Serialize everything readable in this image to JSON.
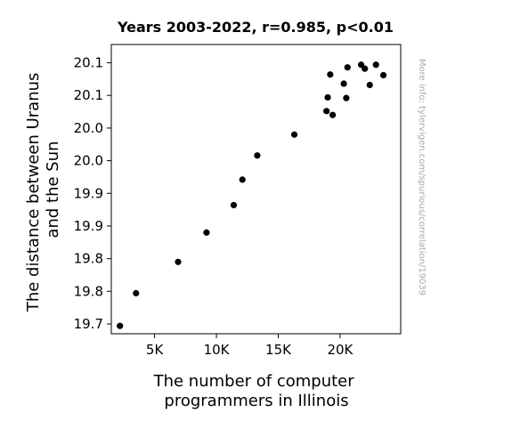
{
  "chart_data": {
    "type": "scatter",
    "title": "Years 2003-2022, r=0.985, p<0.01",
    "xlabel": [
      "The number of computer",
      "programmers in Illinois"
    ],
    "ylabel": [
      "The distance between Uranus",
      "and the Sun"
    ],
    "watermark": "More info: tylervigen.com/spurious/correlation/19039",
    "xlim": [
      1500,
      24900
    ],
    "ylim": [
      19.685,
      20.128
    ],
    "x_ticks": [
      {
        "value": 5000,
        "label": "5K"
      },
      {
        "value": 10000,
        "label": "10K"
      },
      {
        "value": 15000,
        "label": "15K"
      },
      {
        "value": 20000,
        "label": "20K"
      }
    ],
    "y_ticks": [
      {
        "value": 19.7,
        "label": "19.7"
      },
      {
        "value": 19.75,
        "label": "19.8"
      },
      {
        "value": 19.8,
        "label": "19.8"
      },
      {
        "value": 19.85,
        "label": "19.9"
      },
      {
        "value": 19.9,
        "label": "19.9"
      },
      {
        "value": 19.95,
        "label": "20.0"
      },
      {
        "value": 20.0,
        "label": "20.0"
      },
      {
        "value": 20.05,
        "label": "20.1"
      },
      {
        "value": 20.1,
        "label": "20.1"
      }
    ],
    "point_color": "#000000",
    "points": [
      {
        "x": 2200,
        "y": 19.697
      },
      {
        "x": 3500,
        "y": 19.747
      },
      {
        "x": 6900,
        "y": 19.795
      },
      {
        "x": 9200,
        "y": 19.84
      },
      {
        "x": 11400,
        "y": 19.882
      },
      {
        "x": 12100,
        "y": 19.921
      },
      {
        "x": 13300,
        "y": 19.958
      },
      {
        "x": 16300,
        "y": 19.99
      },
      {
        "x": 18900,
        "y": 20.026
      },
      {
        "x": 19000,
        "y": 20.047
      },
      {
        "x": 19200,
        "y": 20.082
      },
      {
        "x": 19400,
        "y": 20.02
      },
      {
        "x": 20300,
        "y": 20.068
      },
      {
        "x": 20500,
        "y": 20.046
      },
      {
        "x": 20600,
        "y": 20.093
      },
      {
        "x": 21700,
        "y": 20.097
      },
      {
        "x": 22000,
        "y": 20.091
      },
      {
        "x": 22400,
        "y": 20.066
      },
      {
        "x": 22900,
        "y": 20.097
      },
      {
        "x": 23500,
        "y": 20.081
      }
    ]
  }
}
